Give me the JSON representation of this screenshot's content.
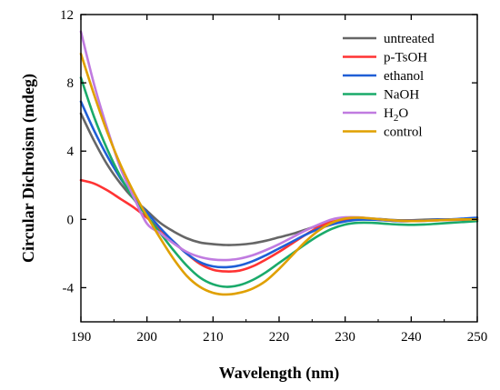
{
  "chart_data": {
    "type": "line",
    "xlabel": "Wavelength (nm)",
    "ylabel": "Circular Dichroism (mdeg)",
    "xlim": [
      190,
      250
    ],
    "ylim": [
      -6,
      12
    ],
    "xticks": [
      "190",
      "200",
      "210",
      "220",
      "230",
      "240",
      "250"
    ],
    "yticks": [
      "12",
      "8",
      "4",
      "0",
      "-4"
    ],
    "grid": false,
    "legend_position": "top-right",
    "series": [
      {
        "name": "untreated",
        "color": "#666666",
        "points": [
          [
            190,
            6.2
          ],
          [
            192,
            4.6
          ],
          [
            194,
            3.2
          ],
          [
            196,
            2.1
          ],
          [
            198,
            1.2
          ],
          [
            200,
            0.5
          ],
          [
            202,
            -0.2
          ],
          [
            204,
            -0.7
          ],
          [
            206,
            -1.1
          ],
          [
            208,
            -1.35
          ],
          [
            210,
            -1.45
          ],
          [
            212,
            -1.5
          ],
          [
            214,
            -1.48
          ],
          [
            216,
            -1.4
          ],
          [
            218,
            -1.25
          ],
          [
            220,
            -1.05
          ],
          [
            222,
            -0.85
          ],
          [
            224,
            -0.6
          ],
          [
            226,
            -0.35
          ],
          [
            228,
            -0.15
          ],
          [
            230,
            -0.05
          ],
          [
            232,
            0.05
          ],
          [
            234,
            0.05
          ],
          [
            236,
            0.0
          ],
          [
            238,
            -0.05
          ],
          [
            240,
            -0.05
          ],
          [
            242,
            -0.02
          ],
          [
            244,
            0.0
          ],
          [
            246,
            0.0
          ],
          [
            248,
            0.0
          ],
          [
            250,
            0.0
          ]
        ]
      },
      {
        "name": "p-TsOH",
        "color": "#ff3333",
        "points": [
          [
            190,
            2.3
          ],
          [
            192,
            2.1
          ],
          [
            194,
            1.7
          ],
          [
            196,
            1.2
          ],
          [
            198,
            0.7
          ],
          [
            200,
            0.1
          ],
          [
            202,
            -0.6
          ],
          [
            204,
            -1.3
          ],
          [
            206,
            -2.0
          ],
          [
            208,
            -2.6
          ],
          [
            210,
            -2.95
          ],
          [
            212,
            -3.05
          ],
          [
            214,
            -3.0
          ],
          [
            216,
            -2.75
          ],
          [
            218,
            -2.35
          ],
          [
            220,
            -1.9
          ],
          [
            222,
            -1.4
          ],
          [
            224,
            -0.9
          ],
          [
            226,
            -0.45
          ],
          [
            228,
            -0.15
          ],
          [
            230,
            0.0
          ],
          [
            232,
            0.05
          ],
          [
            234,
            0.0
          ],
          [
            236,
            -0.05
          ],
          [
            238,
            -0.1
          ],
          [
            240,
            -0.1
          ],
          [
            242,
            -0.08
          ],
          [
            244,
            -0.05
          ],
          [
            246,
            -0.03
          ],
          [
            248,
            -0.02
          ],
          [
            250,
            0.0
          ]
        ]
      },
      {
        "name": "ethanol",
        "color": "#1f5fd6",
        "points": [
          [
            190,
            6.9
          ],
          [
            192,
            5.2
          ],
          [
            194,
            3.7
          ],
          [
            196,
            2.4
          ],
          [
            198,
            1.3
          ],
          [
            200,
            0.4
          ],
          [
            202,
            -0.5
          ],
          [
            204,
            -1.3
          ],
          [
            206,
            -2.0
          ],
          [
            208,
            -2.5
          ],
          [
            210,
            -2.75
          ],
          [
            212,
            -2.8
          ],
          [
            214,
            -2.7
          ],
          [
            216,
            -2.45
          ],
          [
            218,
            -2.1
          ],
          [
            220,
            -1.7
          ],
          [
            222,
            -1.3
          ],
          [
            224,
            -0.9
          ],
          [
            226,
            -0.55
          ],
          [
            228,
            -0.3
          ],
          [
            230,
            -0.12
          ],
          [
            232,
            -0.02
          ],
          [
            234,
            -0.02
          ],
          [
            236,
            -0.05
          ],
          [
            238,
            -0.1
          ],
          [
            240,
            -0.1
          ],
          [
            242,
            -0.06
          ],
          [
            244,
            -0.02
          ],
          [
            246,
            0.0
          ],
          [
            248,
            0.05
          ],
          [
            250,
            0.1
          ]
        ]
      },
      {
        "name": "NaOH",
        "color": "#1aaa6a",
        "points": [
          [
            190,
            8.3
          ],
          [
            192,
            6.0
          ],
          [
            194,
            4.1
          ],
          [
            196,
            2.5
          ],
          [
            198,
            1.2
          ],
          [
            200,
            0.2
          ],
          [
            202,
            -0.8
          ],
          [
            204,
            -1.8
          ],
          [
            206,
            -2.7
          ],
          [
            208,
            -3.4
          ],
          [
            210,
            -3.8
          ],
          [
            212,
            -3.95
          ],
          [
            214,
            -3.85
          ],
          [
            216,
            -3.55
          ],
          [
            218,
            -3.1
          ],
          [
            220,
            -2.55
          ],
          [
            222,
            -2.0
          ],
          [
            224,
            -1.45
          ],
          [
            226,
            -0.95
          ],
          [
            228,
            -0.55
          ],
          [
            230,
            -0.3
          ],
          [
            232,
            -0.2
          ],
          [
            234,
            -0.2
          ],
          [
            236,
            -0.25
          ],
          [
            238,
            -0.3
          ],
          [
            240,
            -0.32
          ],
          [
            242,
            -0.3
          ],
          [
            244,
            -0.25
          ],
          [
            246,
            -0.2
          ],
          [
            248,
            -0.15
          ],
          [
            250,
            -0.1
          ]
        ]
      },
      {
        "name": "H2O",
        "color": "#c07be0",
        "points": [
          [
            190,
            11.0
          ],
          [
            192,
            7.9
          ],
          [
            194,
            5.3
          ],
          [
            196,
            3.0
          ],
          [
            198,
            1.3
          ],
          [
            200,
            -0.25
          ],
          [
            202,
            -0.8
          ],
          [
            204,
            -1.4
          ],
          [
            206,
            -1.9
          ],
          [
            208,
            -2.2
          ],
          [
            210,
            -2.35
          ],
          [
            212,
            -2.38
          ],
          [
            214,
            -2.3
          ],
          [
            216,
            -2.1
          ],
          [
            218,
            -1.8
          ],
          [
            220,
            -1.45
          ],
          [
            222,
            -1.05
          ],
          [
            224,
            -0.65
          ],
          [
            226,
            -0.3
          ],
          [
            228,
            0.0
          ],
          [
            230,
            0.12
          ],
          [
            232,
            0.12
          ],
          [
            234,
            0.05
          ],
          [
            236,
            -0.02
          ],
          [
            238,
            -0.08
          ],
          [
            240,
            -0.1
          ],
          [
            242,
            -0.08
          ],
          [
            244,
            -0.05
          ],
          [
            246,
            -0.02
          ],
          [
            248,
            0.0
          ],
          [
            250,
            0.0
          ]
        ]
      },
      {
        "name": "control",
        "color": "#e0a000",
        "points": [
          [
            190,
            9.7
          ],
          [
            192,
            7.3
          ],
          [
            194,
            5.1
          ],
          [
            196,
            3.2
          ],
          [
            198,
            1.6
          ],
          [
            200,
            0.2
          ],
          [
            202,
            -1.1
          ],
          [
            204,
            -2.3
          ],
          [
            206,
            -3.3
          ],
          [
            208,
            -3.95
          ],
          [
            210,
            -4.3
          ],
          [
            212,
            -4.4
          ],
          [
            214,
            -4.3
          ],
          [
            216,
            -4.05
          ],
          [
            218,
            -3.6
          ],
          [
            220,
            -2.9
          ],
          [
            222,
            -2.1
          ],
          [
            224,
            -1.3
          ],
          [
            226,
            -0.65
          ],
          [
            228,
            -0.2
          ],
          [
            230,
            0.05
          ],
          [
            232,
            0.1
          ],
          [
            234,
            0.05
          ],
          [
            236,
            -0.02
          ],
          [
            238,
            -0.08
          ],
          [
            240,
            -0.1
          ],
          [
            242,
            -0.08
          ],
          [
            244,
            -0.05
          ],
          [
            246,
            -0.02
          ],
          [
            248,
            0.0
          ],
          [
            250,
            0.0
          ]
        ]
      }
    ]
  }
}
